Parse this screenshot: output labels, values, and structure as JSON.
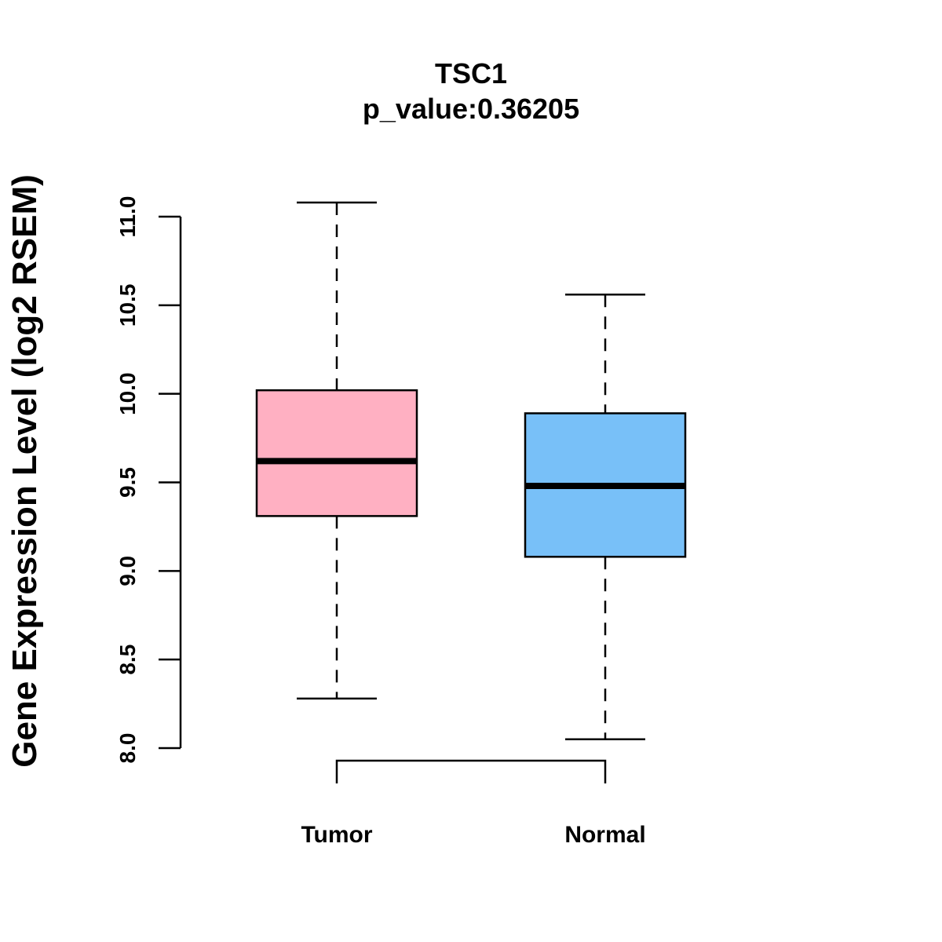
{
  "chart_data": {
    "type": "box",
    "title": "TSC1",
    "subtitle": "p_value:0.36205",
    "xlabel": "",
    "ylabel": "Gene Expression Level (log2 RSEM)",
    "ylim": [
      8.0,
      11.0
    ],
    "yticks": [
      "8.0",
      "8.5",
      "9.0",
      "9.5",
      "10.0",
      "10.5",
      "11.0"
    ],
    "grid": false,
    "categories": [
      "Tumor",
      "Normal"
    ],
    "boxes": [
      {
        "name": "Tumor",
        "whisker_low": 8.28,
        "q1": 9.31,
        "median": 9.62,
        "q3": 10.02,
        "whisker_high": 11.08,
        "color": "#FFB0C2"
      },
      {
        "name": "Normal",
        "whisker_low": 8.05,
        "q1": 9.08,
        "median": 9.48,
        "q3": 9.89,
        "whisker_high": 10.56,
        "color": "#78C0F8"
      }
    ],
    "comparison_bracket": [
      "Tumor",
      "Normal"
    ]
  }
}
